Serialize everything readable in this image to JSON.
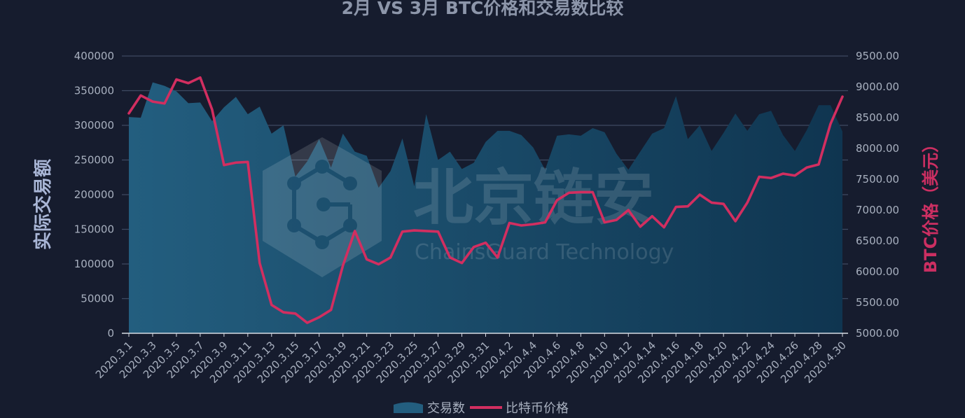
{
  "colors": {
    "background": "#161c2e",
    "area_left": "#235e7f",
    "area_right": "#0f3550",
    "line": "#d22e60",
    "grid": "#3f4a62",
    "axis_text": "#a8b0bf",
    "left_label": "#a9b6d6",
    "right_label": "#cc2f62",
    "title": "#8d96aa"
  },
  "watermark": {
    "brand": "北京链安",
    "sub": "ChainsGuard Technology"
  },
  "chart_data": {
    "type": "area+line",
    "title": "2月 VS 3月 BTC价格和交易数比较",
    "ylabel_left": "实际交易额",
    "ylabel_right": "BTC价格（美元）",
    "ylim_left": [
      0,
      400000
    ],
    "ylim_right": [
      5000,
      9500
    ],
    "yticks_left": [
      "0",
      "50000",
      "100000",
      "150000",
      "200000",
      "250000",
      "300000",
      "350000",
      "400000"
    ],
    "yticks_right": [
      "5000.00",
      "5500.00",
      "6000.00",
      "6500.00",
      "7000.00",
      "7500.00",
      "8000.00",
      "8500.00",
      "9000.00",
      "9500.00"
    ],
    "grid": true,
    "legend_position": "bottom-center",
    "categories": [
      "2020.3.1",
      "2020.3.2",
      "2020.3.3",
      "2020.3.4",
      "2020.3.5",
      "2020.3.6",
      "2020.3.7",
      "2020.3.8",
      "2020.3.9",
      "2020.3.10",
      "2020.3.11",
      "2020.3.12",
      "2020.3.13",
      "2020.3.14",
      "2020.3.15",
      "2020.3.16",
      "2020.3.17",
      "2020.3.18",
      "2020.3.19",
      "2020.3.20",
      "2020.3.21",
      "2020.3.22",
      "2020.3.23",
      "2020.3.24",
      "2020.3.25",
      "2020.3.26",
      "2020.3.27",
      "2020.3.28",
      "2020.3.29",
      "2020.3.30",
      "2020.3.31",
      "2020.4.1",
      "2020.4.2",
      "2020.4.3",
      "2020.4.4",
      "2020.4.5",
      "2020.4.6",
      "2020.4.7",
      "2020.4.8",
      "2020.4.9",
      "2020.4.10",
      "2020.4.11",
      "2020.4.12",
      "2020.4.13",
      "2020.4.14",
      "2020.4.15",
      "2020.4.16",
      "2020.4.17",
      "2020.4.18",
      "2020.4.19",
      "2020.4.20",
      "2020.4.21",
      "2020.4.22",
      "2020.4.23",
      "2020.4.24",
      "2020.4.25",
      "2020.4.26",
      "2020.4.27",
      "2020.4.28",
      "2020.4.29",
      "2020.4.30"
    ],
    "xtick_labels": [
      "2020.3.1",
      "2020.3.3",
      "2020.3.5",
      "2020.3.7",
      "2020.3.9",
      "2020.3.11",
      "2020.3.13",
      "2020.3.15",
      "2020.3.17",
      "2020.3.19",
      "2020.3.21",
      "2020.3.23",
      "2020.3.25",
      "2020.3.27",
      "2020.3.29",
      "2020.3.31",
      "2020.4.2",
      "2020.4.4",
      "2020.4.6",
      "2020.4.8",
      "2020.4.10",
      "2020.4.12",
      "2020.4.14",
      "2020.4.16",
      "2020.4.18",
      "2020.4.20",
      "2020.4.22",
      "2020.4.24",
      "2020.4.26",
      "2020.4.28",
      "2020.4.30"
    ],
    "series": [
      {
        "name": "交易数",
        "type": "area",
        "axis": "left",
        "values": [
          312000,
          311000,
          362000,
          357000,
          349000,
          332000,
          333000,
          306000,
          326000,
          341000,
          316000,
          327000,
          288000,
          300000,
          226000,
          248000,
          280000,
          239000,
          288000,
          262000,
          256000,
          210000,
          234000,
          281000,
          212000,
          316000,
          250000,
          262000,
          237000,
          246000,
          276000,
          292000,
          292000,
          286000,
          268000,
          236000,
          285000,
          287000,
          285000,
          296000,
          290000,
          259000,
          236000,
          262000,
          288000,
          296000,
          342000,
          280000,
          300000,
          263000,
          289000,
          317000,
          292000,
          316000,
          321000,
          286000,
          263000,
          293000,
          329000,
          329000,
          291000
        ]
      },
      {
        "name": "比特币价格",
        "type": "line",
        "axis": "right",
        "values": [
          8570,
          8860,
          8760,
          8730,
          9120,
          9060,
          9150,
          8630,
          7730,
          7770,
          7780,
          6140,
          5460,
          5340,
          5320,
          5170,
          5260,
          5380,
          6100,
          6660,
          6200,
          6120,
          6230,
          6650,
          6670,
          6660,
          6650,
          6230,
          6140,
          6400,
          6470,
          6230,
          6790,
          6750,
          6770,
          6800,
          7160,
          7280,
          7290,
          7290,
          6800,
          6840,
          7000,
          6730,
          6900,
          6720,
          7050,
          7060,
          7250,
          7120,
          7100,
          6820,
          7120,
          7540,
          7520,
          7590,
          7560,
          7690,
          7740,
          8400,
          8840
        ]
      }
    ]
  }
}
